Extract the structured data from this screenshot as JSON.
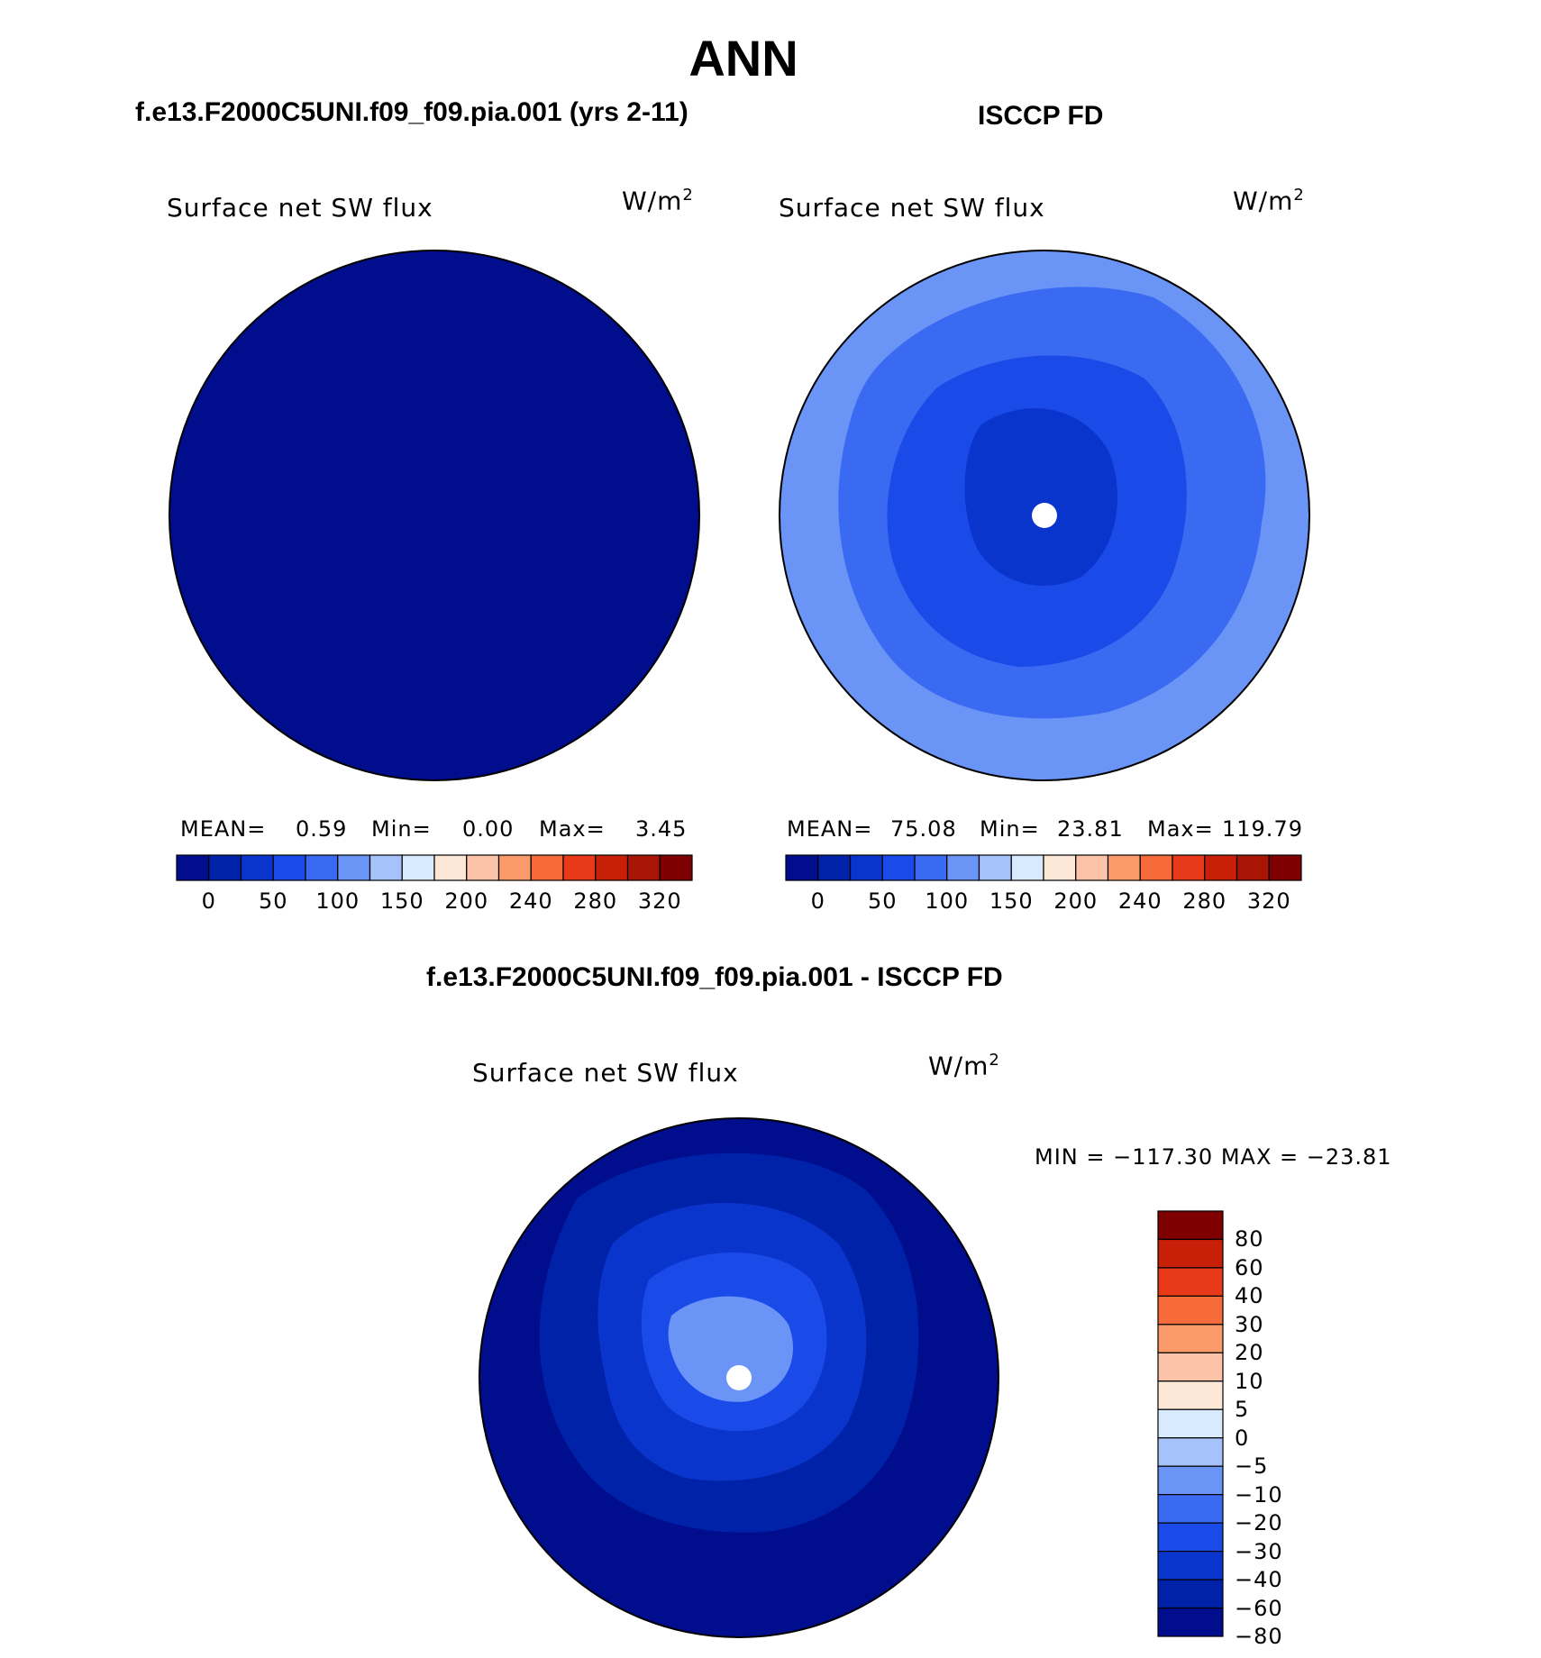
{
  "main_title": "ANN",
  "left_case_title": "f.e13.F2000C5UNI.f09_f09.pia.001 (yrs 2-11)",
  "right_case_title": "ISCCP FD",
  "diff_case_title": "f.e13.F2000C5UNI.f09_f09.pia.001 - ISCCP FD",
  "colors": {
    "abs_scale": [
      "#000d8c",
      "#0022a8",
      "#0a35cc",
      "#1a4ae8",
      "#3a6af2",
      "#6a94f6",
      "#a6c2fa",
      "#d8eafe",
      "#fde8d8",
      "#fcc3a8",
      "#fa9a6a",
      "#f76a3a",
      "#e83a18",
      "#c81f08",
      "#a81505",
      "#7e0000"
    ],
    "diff_scale": [
      "#000d8c",
      "#0022a8",
      "#0a35cc",
      "#1a4ae8",
      "#3a6af2",
      "#6a94f6",
      "#a6c2fa",
      "#d8eafe",
      "#fde8d8",
      "#fcc3a8",
      "#fa9a6a",
      "#f76a3a",
      "#e83a18",
      "#c81f08",
      "#7e0000"
    ],
    "land_outline": "#000000",
    "missing": "#ffffff"
  },
  "chart_data": [
    {
      "type": "heatmap",
      "projection": "north polar stereographic",
      "title": "Surface net SW flux",
      "units_base": "W/m",
      "units_exp": "2",
      "stats": {
        "mean_label": "MEAN=",
        "mean": "0.59",
        "min_label": "Min=",
        "min": "0.00",
        "max_label": "Max=",
        "max": "3.45"
      },
      "colorbar_ticks": [
        "0",
        "50",
        "100",
        "150",
        "200",
        "240",
        "280",
        "320"
      ],
      "field_description_value": 0.59
    },
    {
      "type": "heatmap",
      "projection": "north polar stereographic",
      "title": "Surface net SW flux",
      "units_base": "W/m",
      "units_exp": "2",
      "stats": {
        "mean_label": "MEAN=",
        "mean": "75.08",
        "min_label": "Min=",
        "min": "23.81",
        "max_label": "Max=",
        "max": "119.79"
      },
      "colorbar_ticks": [
        "0",
        "50",
        "100",
        "150",
        "200",
        "240",
        "280",
        "320"
      ],
      "contour_levels": [
        0,
        25,
        50,
        75,
        100,
        125,
        150,
        175,
        200,
        220,
        240,
        260,
        280,
        300,
        320
      ]
    },
    {
      "type": "heatmap",
      "projection": "north polar stereographic",
      "title": "Surface net SW flux",
      "units_base": "W/m",
      "units_exp": "2",
      "range_text": "MIN = −117.30 MAX = −23.81",
      "colorbar_ticks": [
        "80",
        "60",
        "40",
        "30",
        "20",
        "10",
        "5",
        "0",
        "−5",
        "−10",
        "−20",
        "−30",
        "−40",
        "−60",
        "−80"
      ],
      "contour_levels": [
        -80,
        -60,
        -40,
        -30,
        -20,
        -10,
        -5,
        0,
        5,
        10,
        20,
        30,
        40,
        60,
        80
      ]
    }
  ]
}
